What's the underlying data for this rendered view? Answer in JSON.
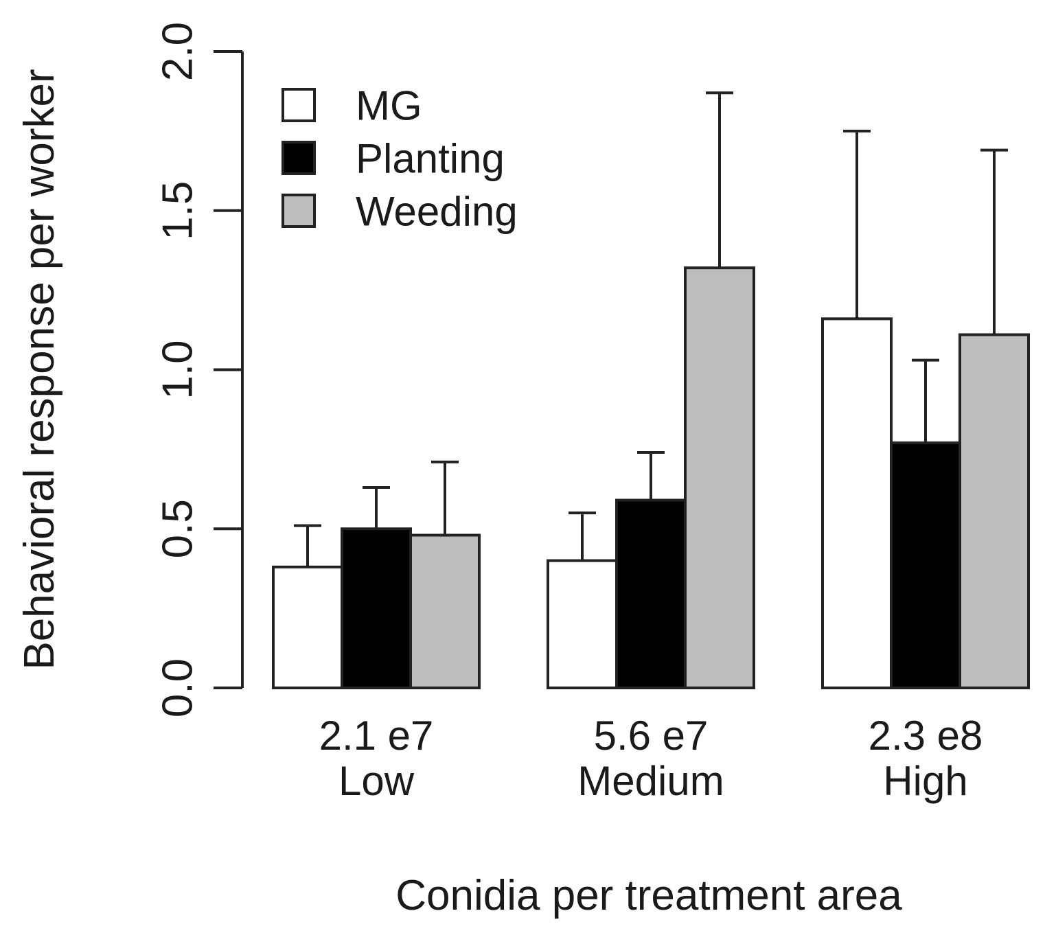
{
  "chart_data": {
    "type": "bar",
    "title": "",
    "xlabel": "Conidia per treatment area",
    "ylabel": "Behavioral response per worker",
    "ylim": [
      0,
      2
    ],
    "yticks": [
      "0.0",
      "0.5",
      "1.0",
      "1.5",
      "2.0"
    ],
    "categories": [
      {
        "value": "2.1 e7",
        "level": "Low"
      },
      {
        "value": "5.6 e7",
        "level": "Medium"
      },
      {
        "value": "2.3 e8",
        "level": "High"
      }
    ],
    "series": [
      {
        "name": "MG",
        "color": "#ffffff",
        "values": [
          0.38,
          0.4,
          1.16
        ],
        "errors_upper": [
          0.51,
          0.55,
          1.75
        ]
      },
      {
        "name": "Planting",
        "color": "#000000",
        "values": [
          0.5,
          0.59,
          0.77
        ],
        "errors_upper": [
          0.63,
          0.74,
          1.03
        ]
      },
      {
        "name": "Weeding",
        "color": "#bdbdbd",
        "values": [
          0.48,
          1.32,
          1.11
        ],
        "errors_upper": [
          0.71,
          1.87,
          1.69
        ]
      }
    ],
    "legend_position": "top-left"
  }
}
